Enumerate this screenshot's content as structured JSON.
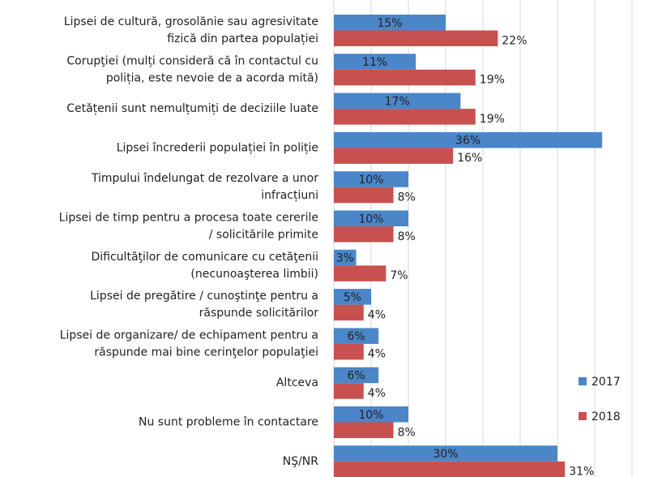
{
  "chart_data": {
    "type": "bar",
    "orientation": "horizontal",
    "categories": [
      "Lipsei de cultură, grosolănie sau agresivitate\nfizică din partea populației",
      "Corupţiei (mulți consideră că în contactul cu\npoliția, este nevoie de a acorda mită)",
      "Cetățenii  sunt nemulțumiți de deciziile luate",
      "Lipsei încrederii populației în poliție",
      "Timpului îndelungat de rezolvare a unor\ninfracțiuni",
      "Lipsei de timp pentru a procesa toate cererile\n/ solicitările primite",
      "Dificultăţilor de comunicare cu cetăţenii\n(necunoaşterea limbii)",
      "Lipsei de pregătire / cunoştinţe pentru a\nrăspunde solicitărilor",
      "Lipsei de organizare/ de echipament pentru a\nrăspunde mai bine cerinţelor populaţiei",
      "Altceva",
      "Nu sunt probleme în contactare",
      "NŞ/NR"
    ],
    "series": [
      {
        "name": "2017",
        "color": "#4a86c8",
        "values": [
          15,
          11,
          17,
          36,
          10,
          10,
          3,
          5,
          6,
          6,
          10,
          30
        ],
        "value_labels": [
          "15%",
          "11%",
          "17%",
          "36%",
          "10%",
          "10%",
          "3%",
          "5%",
          "6%",
          "6%",
          "10%",
          "30%"
        ]
      },
      {
        "name": "2018",
        "color": "#c8504f",
        "values": [
          22,
          19,
          19,
          16,
          8,
          8,
          7,
          4,
          4,
          4,
          8,
          31
        ],
        "value_labels": [
          "22%",
          "19%",
          "19%",
          "16%",
          "8%",
          "8%",
          "7%",
          "4%",
          "4%",
          "4%",
          "8%",
          "31%"
        ]
      }
    ],
    "xlim": [
      0,
      40
    ],
    "xticks": [
      0,
      5,
      10,
      15,
      20,
      25,
      30,
      35,
      40
    ],
    "grid": true,
    "legend": "right"
  }
}
